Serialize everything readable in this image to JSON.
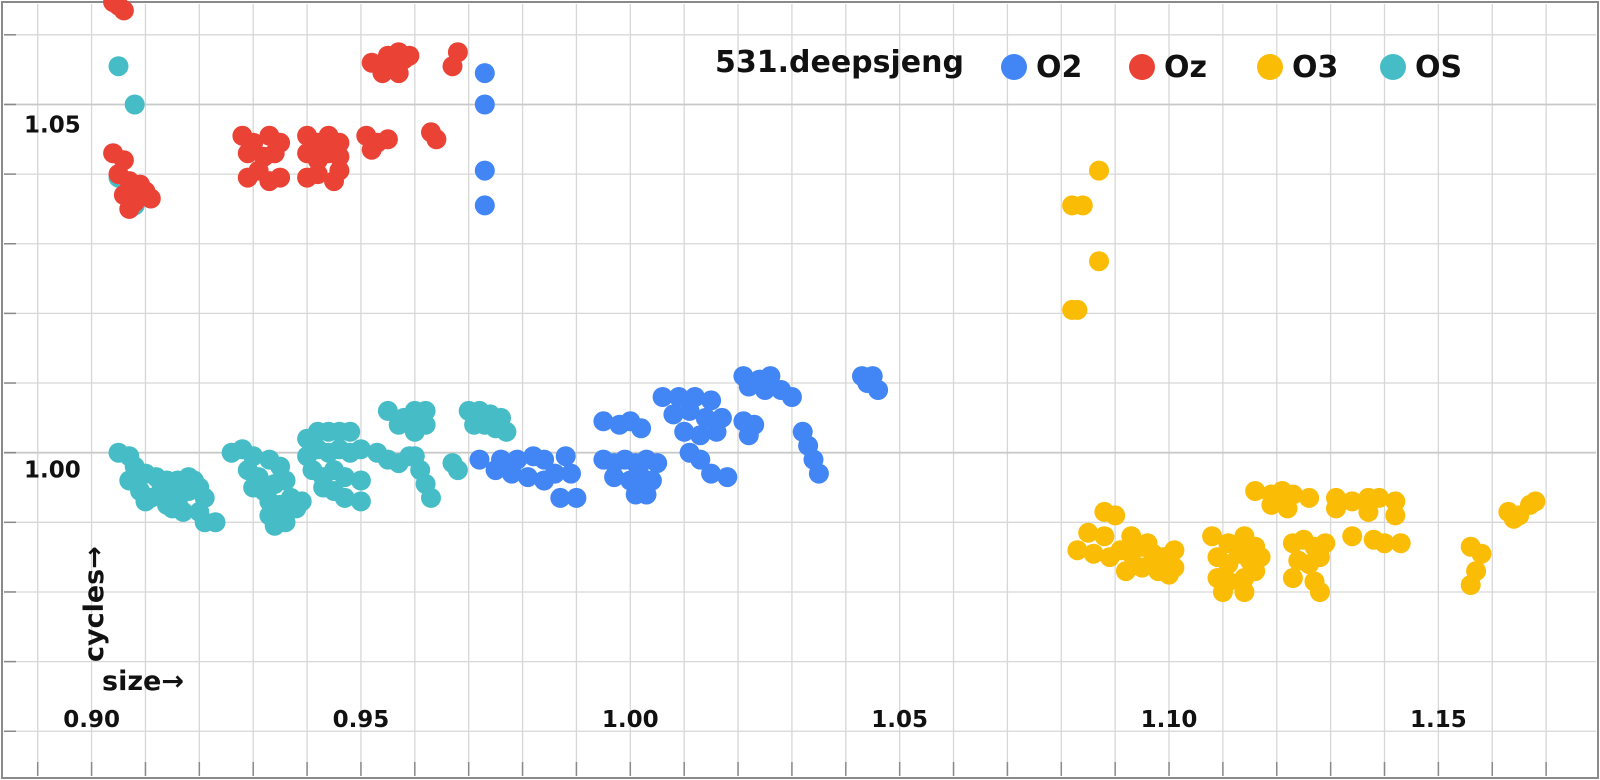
{
  "chart_data": {
    "type": "scatter",
    "title": "531.deepsjeng",
    "xlabel": "size→",
    "ylabel": "cycles→",
    "xlim": [
      0.883,
      1.18
    ],
    "ylim": [
      0.953,
      1.065
    ],
    "x_ticks": [
      0.9,
      0.95,
      1.0,
      1.05,
      1.1,
      1.15
    ],
    "x_tick_labels": [
      "0.90",
      "0.95",
      "1.00",
      "1.05",
      "1.10",
      "1.15"
    ],
    "y_ticks": [
      1.0,
      1.05
    ],
    "y_tick_labels": [
      "1.00",
      "1.05"
    ],
    "grid": true,
    "legend_position": "top-right",
    "series": [
      {
        "name": "O2",
        "color": "#4285f4",
        "points": [
          [
            0.973,
            1.0545
          ],
          [
            0.973,
            1.05
          ],
          [
            0.973,
            1.0405
          ],
          [
            0.973,
            1.0355
          ],
          [
            0.972,
            0.999
          ],
          [
            0.976,
            0.999
          ],
          [
            0.979,
            0.999
          ],
          [
            0.982,
            0.9995
          ],
          [
            0.984,
            0.999
          ],
          [
            0.975,
            0.9975
          ],
          [
            0.978,
            0.997
          ],
          [
            0.981,
            0.9965
          ],
          [
            0.984,
            0.996
          ],
          [
            0.986,
            0.997
          ],
          [
            0.988,
            0.9995
          ],
          [
            0.989,
            0.997
          ],
          [
            0.987,
            0.9935
          ],
          [
            0.99,
            0.9935
          ],
          [
            0.995,
            1.0045
          ],
          [
            0.998,
            1.004
          ],
          [
            1.0,
            1.0045
          ],
          [
            1.002,
            1.0035
          ],
          [
            0.995,
            0.999
          ],
          [
            0.997,
            0.9985
          ],
          [
            0.999,
            0.999
          ],
          [
            1.001,
            0.9985
          ],
          [
            1.003,
            0.999
          ],
          [
            1.005,
            0.9985
          ],
          [
            0.997,
            0.9965
          ],
          [
            1.0,
            0.996
          ],
          [
            1.002,
            0.9965
          ],
          [
            1.004,
            0.996
          ],
          [
            1.001,
            0.994
          ],
          [
            1.003,
            0.994
          ],
          [
            1.006,
            1.008
          ],
          [
            1.009,
            1.008
          ],
          [
            1.012,
            1.008
          ],
          [
            1.015,
            1.0075
          ],
          [
            1.008,
            1.0055
          ],
          [
            1.011,
            1.006
          ],
          [
            1.014,
            1.005
          ],
          [
            1.017,
            1.005
          ],
          [
            1.01,
            1.003
          ],
          [
            1.013,
            1.0025
          ],
          [
            1.016,
            1.003
          ],
          [
            1.011,
            1.0
          ],
          [
            1.013,
            0.999
          ],
          [
            1.015,
            0.997
          ],
          [
            1.018,
            0.9965
          ],
          [
            1.021,
            1.011
          ],
          [
            1.024,
            1.0105
          ],
          [
            1.026,
            1.011
          ],
          [
            1.028,
            1.009
          ],
          [
            1.022,
            1.0095
          ],
          [
            1.025,
            1.009
          ],
          [
            1.03,
            1.008
          ],
          [
            1.021,
            1.0045
          ],
          [
            1.023,
            1.004
          ],
          [
            1.022,
            1.0025
          ],
          [
            1.032,
            1.003
          ],
          [
            1.033,
            1.001
          ],
          [
            1.034,
            0.999
          ],
          [
            1.035,
            0.997
          ],
          [
            1.043,
            1.011
          ],
          [
            1.045,
            1.011
          ],
          [
            1.044,
            1.01
          ],
          [
            1.046,
            1.009
          ]
        ]
      },
      {
        "name": "Oz",
        "color": "#ea4335",
        "points": [
          [
            0.904,
            1.0647
          ],
          [
            0.905,
            1.0642
          ],
          [
            0.906,
            1.0635
          ],
          [
            0.904,
            1.043
          ],
          [
            0.906,
            1.042
          ],
          [
            0.905,
            1.04
          ],
          [
            0.907,
            1.039
          ],
          [
            0.906,
            1.037
          ],
          [
            0.908,
            1.036
          ],
          [
            0.907,
            1.035
          ],
          [
            0.909,
            1.0385
          ],
          [
            0.91,
            1.0375
          ],
          [
            0.911,
            1.0365
          ],
          [
            0.928,
            1.0455
          ],
          [
            0.93,
            1.0445
          ],
          [
            0.933,
            1.0455
          ],
          [
            0.935,
            1.0445
          ],
          [
            0.929,
            1.043
          ],
          [
            0.932,
            1.0425
          ],
          [
            0.934,
            1.043
          ],
          [
            0.929,
            1.0395
          ],
          [
            0.931,
            1.0405
          ],
          [
            0.933,
            1.039
          ],
          [
            0.935,
            1.0395
          ],
          [
            0.94,
            1.0455
          ],
          [
            0.942,
            1.0445
          ],
          [
            0.944,
            1.0455
          ],
          [
            0.946,
            1.0445
          ],
          [
            0.94,
            1.043
          ],
          [
            0.942,
            1.042
          ],
          [
            0.944,
            1.043
          ],
          [
            0.946,
            1.0425
          ],
          [
            0.94,
            1.0395
          ],
          [
            0.942,
            1.04
          ],
          [
            0.945,
            1.039
          ],
          [
            0.946,
            1.0405
          ],
          [
            0.951,
            1.0455
          ],
          [
            0.953,
            1.0445
          ],
          [
            0.955,
            1.045
          ],
          [
            0.952,
            1.0435
          ],
          [
            0.955,
            1.057
          ],
          [
            0.957,
            1.0575
          ],
          [
            0.959,
            1.057
          ],
          [
            0.952,
            1.056
          ],
          [
            0.956,
            1.0555
          ],
          [
            0.958,
            1.0565
          ],
          [
            0.954,
            1.0545
          ],
          [
            0.957,
            1.0545
          ],
          [
            0.963,
            1.046
          ],
          [
            0.964,
            1.045
          ],
          [
            0.968,
            1.0575
          ],
          [
            0.967,
            1.0555
          ]
        ]
      },
      {
        "name": "O3",
        "color": "#fbbc05",
        "points": [
          [
            1.087,
            1.0405
          ],
          [
            1.082,
            1.0355
          ],
          [
            1.084,
            1.0355
          ],
          [
            1.087,
            1.0275
          ],
          [
            1.082,
            1.0205
          ],
          [
            1.083,
            1.0205
          ],
          [
            1.088,
            0.9915
          ],
          [
            1.09,
            0.991
          ],
          [
            1.085,
            0.9885
          ],
          [
            1.088,
            0.988
          ],
          [
            1.083,
            0.986
          ],
          [
            1.086,
            0.9855
          ],
          [
            1.089,
            0.985
          ],
          [
            1.091,
            0.986
          ],
          [
            1.093,
            0.9855
          ],
          [
            1.095,
            0.9865
          ],
          [
            1.097,
            0.9855
          ],
          [
            1.099,
            0.985
          ],
          [
            1.101,
            0.986
          ],
          [
            1.092,
            0.983
          ],
          [
            1.095,
            0.9835
          ],
          [
            1.098,
            0.983
          ],
          [
            1.101,
            0.9835
          ],
          [
            1.1,
            0.9825
          ],
          [
            1.093,
            0.988
          ],
          [
            1.096,
            0.987
          ],
          [
            1.108,
            0.988
          ],
          [
            1.111,
            0.987
          ],
          [
            1.114,
            0.988
          ],
          [
            1.116,
            0.9865
          ],
          [
            1.109,
            0.985
          ],
          [
            1.111,
            0.984
          ],
          [
            1.113,
            0.9855
          ],
          [
            1.115,
            0.9845
          ],
          [
            1.117,
            0.985
          ],
          [
            1.109,
            0.982
          ],
          [
            1.111,
            0.9815
          ],
          [
            1.114,
            0.982
          ],
          [
            1.116,
            0.983
          ],
          [
            1.11,
            0.98
          ],
          [
            1.114,
            0.98
          ],
          [
            1.116,
            0.9945
          ],
          [
            1.119,
            0.994
          ],
          [
            1.121,
            0.9945
          ],
          [
            1.123,
            0.994
          ],
          [
            1.126,
            0.9935
          ],
          [
            1.119,
            0.9925
          ],
          [
            1.122,
            0.992
          ],
          [
            1.123,
            0.987
          ],
          [
            1.125,
            0.9875
          ],
          [
            1.127,
            0.9865
          ],
          [
            1.129,
            0.987
          ],
          [
            1.124,
            0.9845
          ],
          [
            1.126,
            0.984
          ],
          [
            1.128,
            0.985
          ],
          [
            1.123,
            0.982
          ],
          [
            1.127,
            0.9815
          ],
          [
            1.128,
            0.98
          ],
          [
            1.131,
            0.9935
          ],
          [
            1.134,
            0.993
          ],
          [
            1.137,
            0.9935
          ],
          [
            1.139,
            0.9935
          ],
          [
            1.142,
            0.993
          ],
          [
            1.131,
            0.992
          ],
          [
            1.137,
            0.9915
          ],
          [
            1.142,
            0.991
          ],
          [
            1.134,
            0.988
          ],
          [
            1.138,
            0.9875
          ],
          [
            1.14,
            0.987
          ],
          [
            1.143,
            0.987
          ],
          [
            1.156,
            0.9865
          ],
          [
            1.158,
            0.9855
          ],
          [
            1.157,
            0.983
          ],
          [
            1.156,
            0.981
          ],
          [
            1.163,
            0.9915
          ],
          [
            1.165,
            0.991
          ],
          [
            1.167,
            0.9925
          ],
          [
            1.168,
            0.993
          ],
          [
            1.164,
            0.9905
          ]
        ]
      },
      {
        "name": "OS",
        "color": "#46bdc6",
        "points": [
          [
            0.905,
            1.0555
          ],
          [
            0.908,
            1.05
          ],
          [
            0.905,
            1.0395
          ],
          [
            0.908,
            1.0355
          ],
          [
            0.905,
            1.0
          ],
          [
            0.907,
            0.9995
          ],
          [
            0.908,
            0.998
          ],
          [
            0.907,
            0.996
          ],
          [
            0.91,
            0.997
          ],
          [
            0.912,
            0.9965
          ],
          [
            0.914,
            0.996
          ],
          [
            0.909,
            0.9945
          ],
          [
            0.911,
            0.9935
          ],
          [
            0.913,
            0.995
          ],
          [
            0.915,
            0.994
          ],
          [
            0.91,
            0.993
          ],
          [
            0.914,
            0.9925
          ],
          [
            0.916,
            0.993
          ],
          [
            0.918,
            0.9945
          ],
          [
            0.915,
            0.992
          ],
          [
            0.917,
            0.9915
          ],
          [
            0.916,
            0.996
          ],
          [
            0.918,
            0.9965
          ],
          [
            0.919,
            0.996
          ],
          [
            0.92,
            0.995
          ],
          [
            0.921,
            0.9935
          ],
          [
            0.92,
            0.9915
          ],
          [
            0.921,
            0.99
          ],
          [
            0.923,
            0.99
          ],
          [
            0.926,
            1.0
          ],
          [
            0.928,
            1.0005
          ],
          [
            0.93,
            0.9995
          ],
          [
            0.929,
            0.9975
          ],
          [
            0.931,
            0.9965
          ],
          [
            0.933,
            0.999
          ],
          [
            0.935,
            0.998
          ],
          [
            0.93,
            0.995
          ],
          [
            0.932,
            0.9945
          ],
          [
            0.934,
            0.9955
          ],
          [
            0.936,
            0.996
          ],
          [
            0.933,
            0.993
          ],
          [
            0.935,
            0.9925
          ],
          [
            0.937,
            0.9935
          ],
          [
            0.939,
            0.993
          ],
          [
            0.933,
            0.991
          ],
          [
            0.935,
            0.9905
          ],
          [
            0.938,
            0.992
          ],
          [
            0.934,
            0.9895
          ],
          [
            0.936,
            0.99
          ],
          [
            0.94,
            1.002
          ],
          [
            0.942,
            1.003
          ],
          [
            0.944,
            1.003
          ],
          [
            0.946,
            1.003
          ],
          [
            0.948,
            1.003
          ],
          [
            0.94,
            0.9995
          ],
          [
            0.942,
            1.0005
          ],
          [
            0.944,
            1.0
          ],
          [
            0.946,
            1.0005
          ],
          [
            0.948,
            1.0
          ],
          [
            0.95,
            1.0005
          ],
          [
            0.941,
            0.9975
          ],
          [
            0.943,
            0.9965
          ],
          [
            0.945,
            0.9975
          ],
          [
            0.947,
            0.9965
          ],
          [
            0.943,
            0.995
          ],
          [
            0.945,
            0.9945
          ],
          [
            0.947,
            0.9935
          ],
          [
            0.95,
            0.996
          ],
          [
            0.95,
            0.993
          ],
          [
            0.953,
            1.0
          ],
          [
            0.955,
            0.999
          ],
          [
            0.957,
            0.9985
          ],
          [
            0.959,
            0.9995
          ],
          [
            0.955,
            1.006
          ],
          [
            0.958,
            1.005
          ],
          [
            0.96,
            1.006
          ],
          [
            0.961,
            1.005
          ],
          [
            0.962,
            1.006
          ],
          [
            0.957,
            1.004
          ],
          [
            0.96,
            1.003
          ],
          [
            0.962,
            1.004
          ],
          [
            0.96,
            0.9995
          ],
          [
            0.961,
            0.9975
          ],
          [
            0.962,
            0.9955
          ],
          [
            0.963,
            0.9935
          ],
          [
            0.967,
            0.9985
          ],
          [
            0.968,
            0.9975
          ],
          [
            0.97,
            1.006
          ],
          [
            0.972,
            1.006
          ],
          [
            0.974,
            1.0055
          ],
          [
            0.976,
            1.005
          ],
          [
            0.971,
            1.004
          ],
          [
            0.973,
            1.004
          ],
          [
            0.975,
            1.0035
          ],
          [
            0.977,
            1.003
          ]
        ]
      }
    ]
  },
  "colors": {
    "background": "#ffffff",
    "grid": "#d7d7d7",
    "axis": "#8a8a8a"
  }
}
